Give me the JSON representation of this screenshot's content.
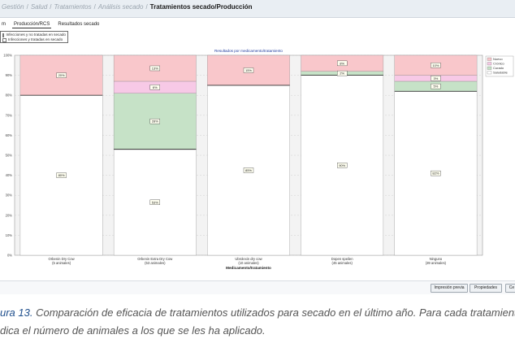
{
  "breadcrumb": {
    "items": [
      "Gestión",
      "Salud",
      "Tratamientos",
      "Análisis secado"
    ],
    "current": "Tratamientos secado/Producción"
  },
  "tabs": [
    "m",
    "Producción/RCS",
    "Resultados secado"
  ],
  "filter": {
    "options": [
      "Infecciones y no tratadas en secado",
      "Infecciones y tratadas en secado"
    ]
  },
  "buttons": {
    "print": "Impresión previa",
    "properties": "Propiedades",
    "close": "Ce"
  },
  "caption": {
    "lead": "ura 13.",
    "line1": "Comparación de eficacia de tratamientos utilizados para secado en el último año. Para cada tratamiento se",
    "line2": "dica el número de animales a los que se les ha aplicado."
  },
  "chart_data": {
    "type": "bar",
    "stacked": true,
    "title": "Resultados por medicamento/tratamiento",
    "xlabel": "Medicamento/tratamiento",
    "ylabel": "",
    "ylim": [
      0,
      100
    ],
    "yticks": [
      "0%",
      "10%",
      "20%",
      "30%",
      "40%",
      "50%",
      "60%",
      "70%",
      "80%",
      "90%",
      "100%"
    ],
    "categories": [
      [
        "Orbenin Dry Cow",
        "(5 animales)"
      ],
      [
        "Orbenin Extra Dry Cow",
        "(53 animales)"
      ],
      [
        "Ubrolexin dry cow",
        "(10 animales)"
      ],
      [
        "Dopen speilen",
        "(45 animales)"
      ],
      [
        "Ninguno",
        "(39 animales)"
      ]
    ],
    "legend_position": "top-right",
    "series": [
      {
        "name": "Saludable",
        "color": "#ffffff",
        "values": [
          80,
          53,
          85,
          90,
          82
        ],
        "labels": [
          "80%",
          "53%",
          "85%",
          "90%",
          "82%"
        ]
      },
      {
        "name": "Curado",
        "color": "#c6e2c7",
        "values": [
          0,
          28,
          0,
          2,
          5
        ],
        "labels": [
          "",
          "28%",
          "",
          "2%",
          "5%"
        ]
      },
      {
        "name": "Crónico",
        "color": "#f7c9e6",
        "values": [
          0,
          6,
          0,
          0,
          3
        ],
        "labels": [
          "",
          "6%",
          "",
          "",
          "3%"
        ]
      },
      {
        "name": "Nuevo",
        "color": "#f9c7cb",
        "values": [
          20,
          13,
          15,
          8,
          10
        ],
        "labels": [
          "20%",
          "13%",
          "15%",
          "8%",
          "10%"
        ]
      }
    ]
  }
}
